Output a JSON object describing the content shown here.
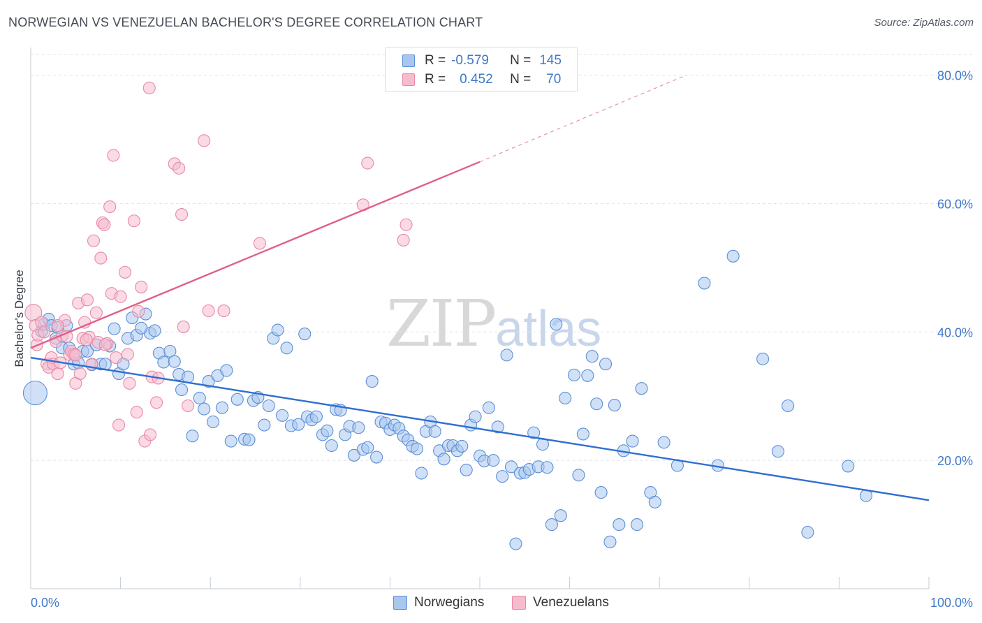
{
  "title": "NORWEGIAN VS VENEZUELAN BACHELOR'S DEGREE CORRELATION CHART",
  "source": "Source: ZipAtlas.com",
  "watermark": {
    "zip": "ZIP",
    "atlas": "atlas"
  },
  "legend": {
    "rows": [
      {
        "r_label": "R =",
        "r_value": "-0.579",
        "n_label": "N =",
        "n_value": "145"
      },
      {
        "r_label": "R =",
        "r_value": "0.452",
        "n_label": "N =",
        "n_value": "70"
      }
    ]
  },
  "bottom_legend": [
    "Norwegians",
    "Venezuelans"
  ],
  "colors": {
    "blue_fill": "#a9c6ef",
    "blue_stroke": "#5b8fd6",
    "blue_line": "#2f6fd0",
    "pink_fill": "#f6bccd",
    "pink_stroke": "#e88aa6",
    "pink_line": "#e0608a",
    "grid": "#dde2ea",
    "tick_text": "#3f78c9"
  },
  "chart_data": {
    "type": "scatter",
    "title": "NORWEGIAN VS VENEZUELAN BACHELOR'S DEGREE CORRELATION CHART",
    "xlabel": "",
    "ylabel": "Bachelor's Degree",
    "xlim": [
      0,
      100
    ],
    "ylim": [
      0,
      83
    ],
    "x_tick_labels": [
      "0.0%",
      "100.0%"
    ],
    "y_ticks": [
      20,
      40,
      60,
      80
    ],
    "y_tick_labels": [
      "20.0%",
      "40.0%",
      "60.0%",
      "80.0%"
    ],
    "grid": true,
    "legend_position": "top-center",
    "series": [
      {
        "name": "Norwegians",
        "r": -0.579,
        "n": 145,
        "trend": {
          "x0": 0,
          "y0": 36.0,
          "x1": 100,
          "y1": 13.8
        },
        "points": [
          [
            0.5,
            30.5
          ],
          [
            1.2,
            40.1
          ],
          [
            1.5,
            41.2
          ],
          [
            2.0,
            42.0
          ],
          [
            2.3,
            41.0
          ],
          [
            2.8,
            39.0
          ],
          [
            3.5,
            37.5
          ],
          [
            4.0,
            41.0
          ],
          [
            4.3,
            37.5
          ],
          [
            4.8,
            35.0
          ],
          [
            5.3,
            35.2
          ],
          [
            5.8,
            37.0
          ],
          [
            6.3,
            37.0
          ],
          [
            7.3,
            38.0
          ],
          [
            7.8,
            35.0
          ],
          [
            8.3,
            35.0
          ],
          [
            8.8,
            37.8
          ],
          [
            9.3,
            40.5
          ],
          [
            9.8,
            33.5
          ],
          [
            10.3,
            35.0
          ],
          [
            10.8,
            39.0
          ],
          [
            11.3,
            42.2
          ],
          [
            11.8,
            39.5
          ],
          [
            12.8,
            42.8
          ],
          [
            13.3,
            39.8
          ],
          [
            13.8,
            40.2
          ],
          [
            14.3,
            36.7
          ],
          [
            14.8,
            35.3
          ],
          [
            15.5,
            37.0
          ],
          [
            16.0,
            35.4
          ],
          [
            16.5,
            33.4
          ],
          [
            16.8,
            31.0
          ],
          [
            17.5,
            33.0
          ],
          [
            18.0,
            23.8
          ],
          [
            18.8,
            29.7
          ],
          [
            19.3,
            28.0
          ],
          [
            19.8,
            32.3
          ],
          [
            20.3,
            26.0
          ],
          [
            20.8,
            33.2
          ],
          [
            21.3,
            28.2
          ],
          [
            21.8,
            34.0
          ],
          [
            22.3,
            23.0
          ],
          [
            23.0,
            29.5
          ],
          [
            23.8,
            23.3
          ],
          [
            24.3,
            23.2
          ],
          [
            24.8,
            29.3
          ],
          [
            25.3,
            29.8
          ],
          [
            26.0,
            25.5
          ],
          [
            26.5,
            28.5
          ],
          [
            27.0,
            39.0
          ],
          [
            27.5,
            40.3
          ],
          [
            28.0,
            27.0
          ],
          [
            28.5,
            37.5
          ],
          [
            29.0,
            25.4
          ],
          [
            29.8,
            25.6
          ],
          [
            30.5,
            39.7
          ],
          [
            30.8,
            26.8
          ],
          [
            31.3,
            26.3
          ],
          [
            31.8,
            26.8
          ],
          [
            32.5,
            24.0
          ],
          [
            33.0,
            24.6
          ],
          [
            33.5,
            22.3
          ],
          [
            34.0,
            27.9
          ],
          [
            34.5,
            27.8
          ],
          [
            35.0,
            24.0
          ],
          [
            35.5,
            25.3
          ],
          [
            36.0,
            20.8
          ],
          [
            36.5,
            25.1
          ],
          [
            37.0,
            21.7
          ],
          [
            37.5,
            22.0
          ],
          [
            38.0,
            32.3
          ],
          [
            38.5,
            20.5
          ],
          [
            39.0,
            26.0
          ],
          [
            39.5,
            25.8
          ],
          [
            40.0,
            24.8
          ],
          [
            40.5,
            25.5
          ],
          [
            41.0,
            25.0
          ],
          [
            41.5,
            23.8
          ],
          [
            42.0,
            23.2
          ],
          [
            42.5,
            22.2
          ],
          [
            43.0,
            21.8
          ],
          [
            43.5,
            18.0
          ],
          [
            44.0,
            24.5
          ],
          [
            44.5,
            26.0
          ],
          [
            45.0,
            24.5
          ],
          [
            45.5,
            21.5
          ],
          [
            46.0,
            20.2
          ],
          [
            46.5,
            22.3
          ],
          [
            47.0,
            22.3
          ],
          [
            47.5,
            21.5
          ],
          [
            48.0,
            22.2
          ],
          [
            48.5,
            18.5
          ],
          [
            49.0,
            25.5
          ],
          [
            49.5,
            26.8
          ],
          [
            50.0,
            20.7
          ],
          [
            50.5,
            19.9
          ],
          [
            51.0,
            28.2
          ],
          [
            51.5,
            20.0
          ],
          [
            52.0,
            25.2
          ],
          [
            52.5,
            17.5
          ],
          [
            53.0,
            36.4
          ],
          [
            53.5,
            19.0
          ],
          [
            54.0,
            7.0
          ],
          [
            54.5,
            18.0
          ],
          [
            55.0,
            18.1
          ],
          [
            55.5,
            18.6
          ],
          [
            56.0,
            24.3
          ],
          [
            56.5,
            19.0
          ],
          [
            57.0,
            22.5
          ],
          [
            57.5,
            18.9
          ],
          [
            58.0,
            10.0
          ],
          [
            58.5,
            41.2
          ],
          [
            59.0,
            11.4
          ],
          [
            59.5,
            29.7
          ],
          [
            60.5,
            33.3
          ],
          [
            61.0,
            17.7
          ],
          [
            61.5,
            24.1
          ],
          [
            62.0,
            33.2
          ],
          [
            62.5,
            36.2
          ],
          [
            63.0,
            28.8
          ],
          [
            63.5,
            15.0
          ],
          [
            64.0,
            35.0
          ],
          [
            64.5,
            7.3
          ],
          [
            65.0,
            28.6
          ],
          [
            65.5,
            10.0
          ],
          [
            66.0,
            21.5
          ],
          [
            67.0,
            23.0
          ],
          [
            67.5,
            10.0
          ],
          [
            68.0,
            31.2
          ],
          [
            69.0,
            15.0
          ],
          [
            69.5,
            13.5
          ],
          [
            70.5,
            22.8
          ],
          [
            72.0,
            19.2
          ],
          [
            76.5,
            19.2
          ],
          [
            78.2,
            51.8
          ],
          [
            75.0,
            47.6
          ],
          [
            81.5,
            35.8
          ],
          [
            83.2,
            21.4
          ],
          [
            84.3,
            28.5
          ],
          [
            86.5,
            8.8
          ],
          [
            91.0,
            19.1
          ],
          [
            93.0,
            14.5
          ],
          [
            3.0,
            40.7
          ],
          [
            6.8,
            34.9
          ],
          [
            12.3,
            40.6
          ]
        ]
      },
      {
        "name": "Venezuelans",
        "r": 0.452,
        "n": 70,
        "trend": {
          "x0": 0,
          "y0": 37.5,
          "x1": 50,
          "y1": 66.5,
          "x_dash_end": 73,
          "y_dash_end": 80.0
        },
        "points": [
          [
            0.3,
            43.0
          ],
          [
            0.5,
            41.0
          ],
          [
            0.7,
            38.0
          ],
          [
            0.8,
            39.5
          ],
          [
            1.2,
            41.5
          ],
          [
            1.5,
            40.0
          ],
          [
            1.8,
            35.0
          ],
          [
            2.0,
            34.5
          ],
          [
            2.3,
            36.0
          ],
          [
            2.5,
            35.0
          ],
          [
            2.8,
            38.5
          ],
          [
            3.0,
            33.5
          ],
          [
            3.3,
            35.2
          ],
          [
            3.5,
            39.4
          ],
          [
            3.8,
            41.8
          ],
          [
            4.0,
            39.3
          ],
          [
            4.3,
            36.5
          ],
          [
            4.5,
            37.0
          ],
          [
            4.8,
            36.5
          ],
          [
            5.0,
            32.0
          ],
          [
            5.3,
            44.5
          ],
          [
            5.5,
            33.5
          ],
          [
            5.8,
            39.0
          ],
          [
            6.0,
            41.5
          ],
          [
            6.3,
            45.0
          ],
          [
            6.5,
            39.2
          ],
          [
            6.8,
            35.0
          ],
          [
            7.0,
            54.2
          ],
          [
            7.3,
            43.0
          ],
          [
            7.5,
            38.4
          ],
          [
            7.8,
            51.5
          ],
          [
            8.0,
            57.0
          ],
          [
            8.2,
            56.7
          ],
          [
            8.5,
            38.2
          ],
          [
            8.8,
            59.5
          ],
          [
            9.0,
            46.0
          ],
          [
            9.2,
            67.5
          ],
          [
            9.5,
            36.0
          ],
          [
            9.8,
            25.5
          ],
          [
            10.0,
            45.5
          ],
          [
            10.5,
            49.3
          ],
          [
            10.8,
            36.5
          ],
          [
            11.0,
            32.0
          ],
          [
            11.5,
            57.3
          ],
          [
            11.8,
            27.5
          ],
          [
            12.3,
            47.0
          ],
          [
            12.7,
            23.0
          ],
          [
            13.3,
            24.0
          ],
          [
            13.5,
            33.0
          ],
          [
            14.0,
            29.0
          ],
          [
            16.0,
            66.2
          ],
          [
            16.5,
            65.5
          ],
          [
            16.8,
            58.3
          ],
          [
            17.0,
            40.8
          ],
          [
            17.5,
            28.5
          ],
          [
            19.3,
            69.8
          ],
          [
            19.8,
            43.3
          ],
          [
            21.5,
            43.3
          ],
          [
            25.5,
            53.8
          ],
          [
            37.0,
            59.8
          ],
          [
            37.5,
            66.3
          ],
          [
            41.5,
            54.3
          ],
          [
            41.8,
            56.7
          ],
          [
            13.2,
            78.0
          ],
          [
            3.0,
            41.0
          ],
          [
            5.0,
            36.4
          ],
          [
            8.3,
            38.0
          ],
          [
            12.0,
            43.2
          ],
          [
            6.2,
            38.8
          ],
          [
            14.2,
            32.8
          ]
        ]
      }
    ]
  }
}
